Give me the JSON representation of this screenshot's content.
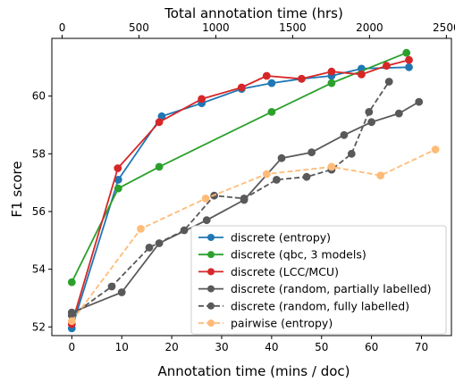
{
  "chart_data": {
    "type": "line",
    "xlabel": "Annotation time (mins / doc)",
    "ylabel": "F1 score",
    "x2label": "Total annotation time (hrs)",
    "xlim": [
      -4,
      76
    ],
    "ylim": [
      51.7,
      62.0
    ],
    "x2lim": [
      -67,
      2533
    ],
    "xticks": [
      0,
      10,
      20,
      30,
      40,
      50,
      60,
      70
    ],
    "yticks": [
      52,
      54,
      56,
      58,
      60
    ],
    "x2ticks": [
      0,
      500,
      1000,
      1500,
      2000,
      2500
    ],
    "legend": {
      "placement": "lower-right"
    },
    "grid": false,
    "series": [
      {
        "name": "discrete (entropy)",
        "color": "#1f77b4",
        "style": "solid",
        "marker": "circle",
        "x": [
          0,
          9.3,
          18,
          26,
          34,
          40,
          46,
          52,
          58,
          67.5
        ],
        "y": [
          51.95,
          57.1,
          59.3,
          59.75,
          60.25,
          60.45,
          60.6,
          60.7,
          60.95,
          61.0
        ]
      },
      {
        "name": "discrete (qbc, 3 models)",
        "color": "#2ca02c",
        "style": "solid",
        "marker": "circle",
        "x": [
          0,
          9.3,
          17.5,
          40,
          52,
          67
        ],
        "y": [
          53.55,
          56.8,
          57.55,
          59.45,
          60.45,
          61.5
        ]
      },
      {
        "name": "discrete (LCC/MCU)",
        "color": "#d62728",
        "style": "solid",
        "marker": "circle",
        "x": [
          0,
          9.2,
          17.5,
          26,
          34,
          39,
          46,
          52,
          58,
          63,
          67.5
        ],
        "y": [
          52.1,
          57.5,
          59.1,
          59.9,
          60.3,
          60.7,
          60.6,
          60.85,
          60.75,
          61.05,
          61.25
        ]
      },
      {
        "name": "discrete (random, partially labelled)",
        "color": "#595959",
        "style": "solid",
        "marker": "circle",
        "x": [
          0,
          10,
          17.5,
          27,
          34.5,
          42,
          48,
          54.5,
          60,
          65.5,
          69.5
        ],
        "y": [
          52.5,
          53.2,
          54.9,
          55.7,
          56.4,
          57.85,
          58.05,
          58.65,
          59.1,
          59.4,
          59.8
        ]
      },
      {
        "name": "discrete (random, fully labelled)",
        "color": "#595959",
        "style": "dashed",
        "marker": "circle",
        "x": [
          0,
          8,
          15.5,
          22.5,
          28.5,
          34.5,
          41,
          47,
          52,
          56,
          59.5,
          63.5
        ],
        "y": [
          52.4,
          53.4,
          54.75,
          55.35,
          56.55,
          56.45,
          57.1,
          57.2,
          57.45,
          58.0,
          59.45,
          60.5
        ]
      },
      {
        "name": "pairwise (entropy)",
        "color": "#ffbb78",
        "style": "dashed",
        "marker": "circle",
        "x": [
          0,
          13.8,
          26.8,
          39,
          52,
          61.8,
          72.8
        ],
        "y": [
          52.2,
          55.4,
          56.45,
          57.3,
          57.55,
          57.25,
          58.15
        ]
      }
    ]
  }
}
